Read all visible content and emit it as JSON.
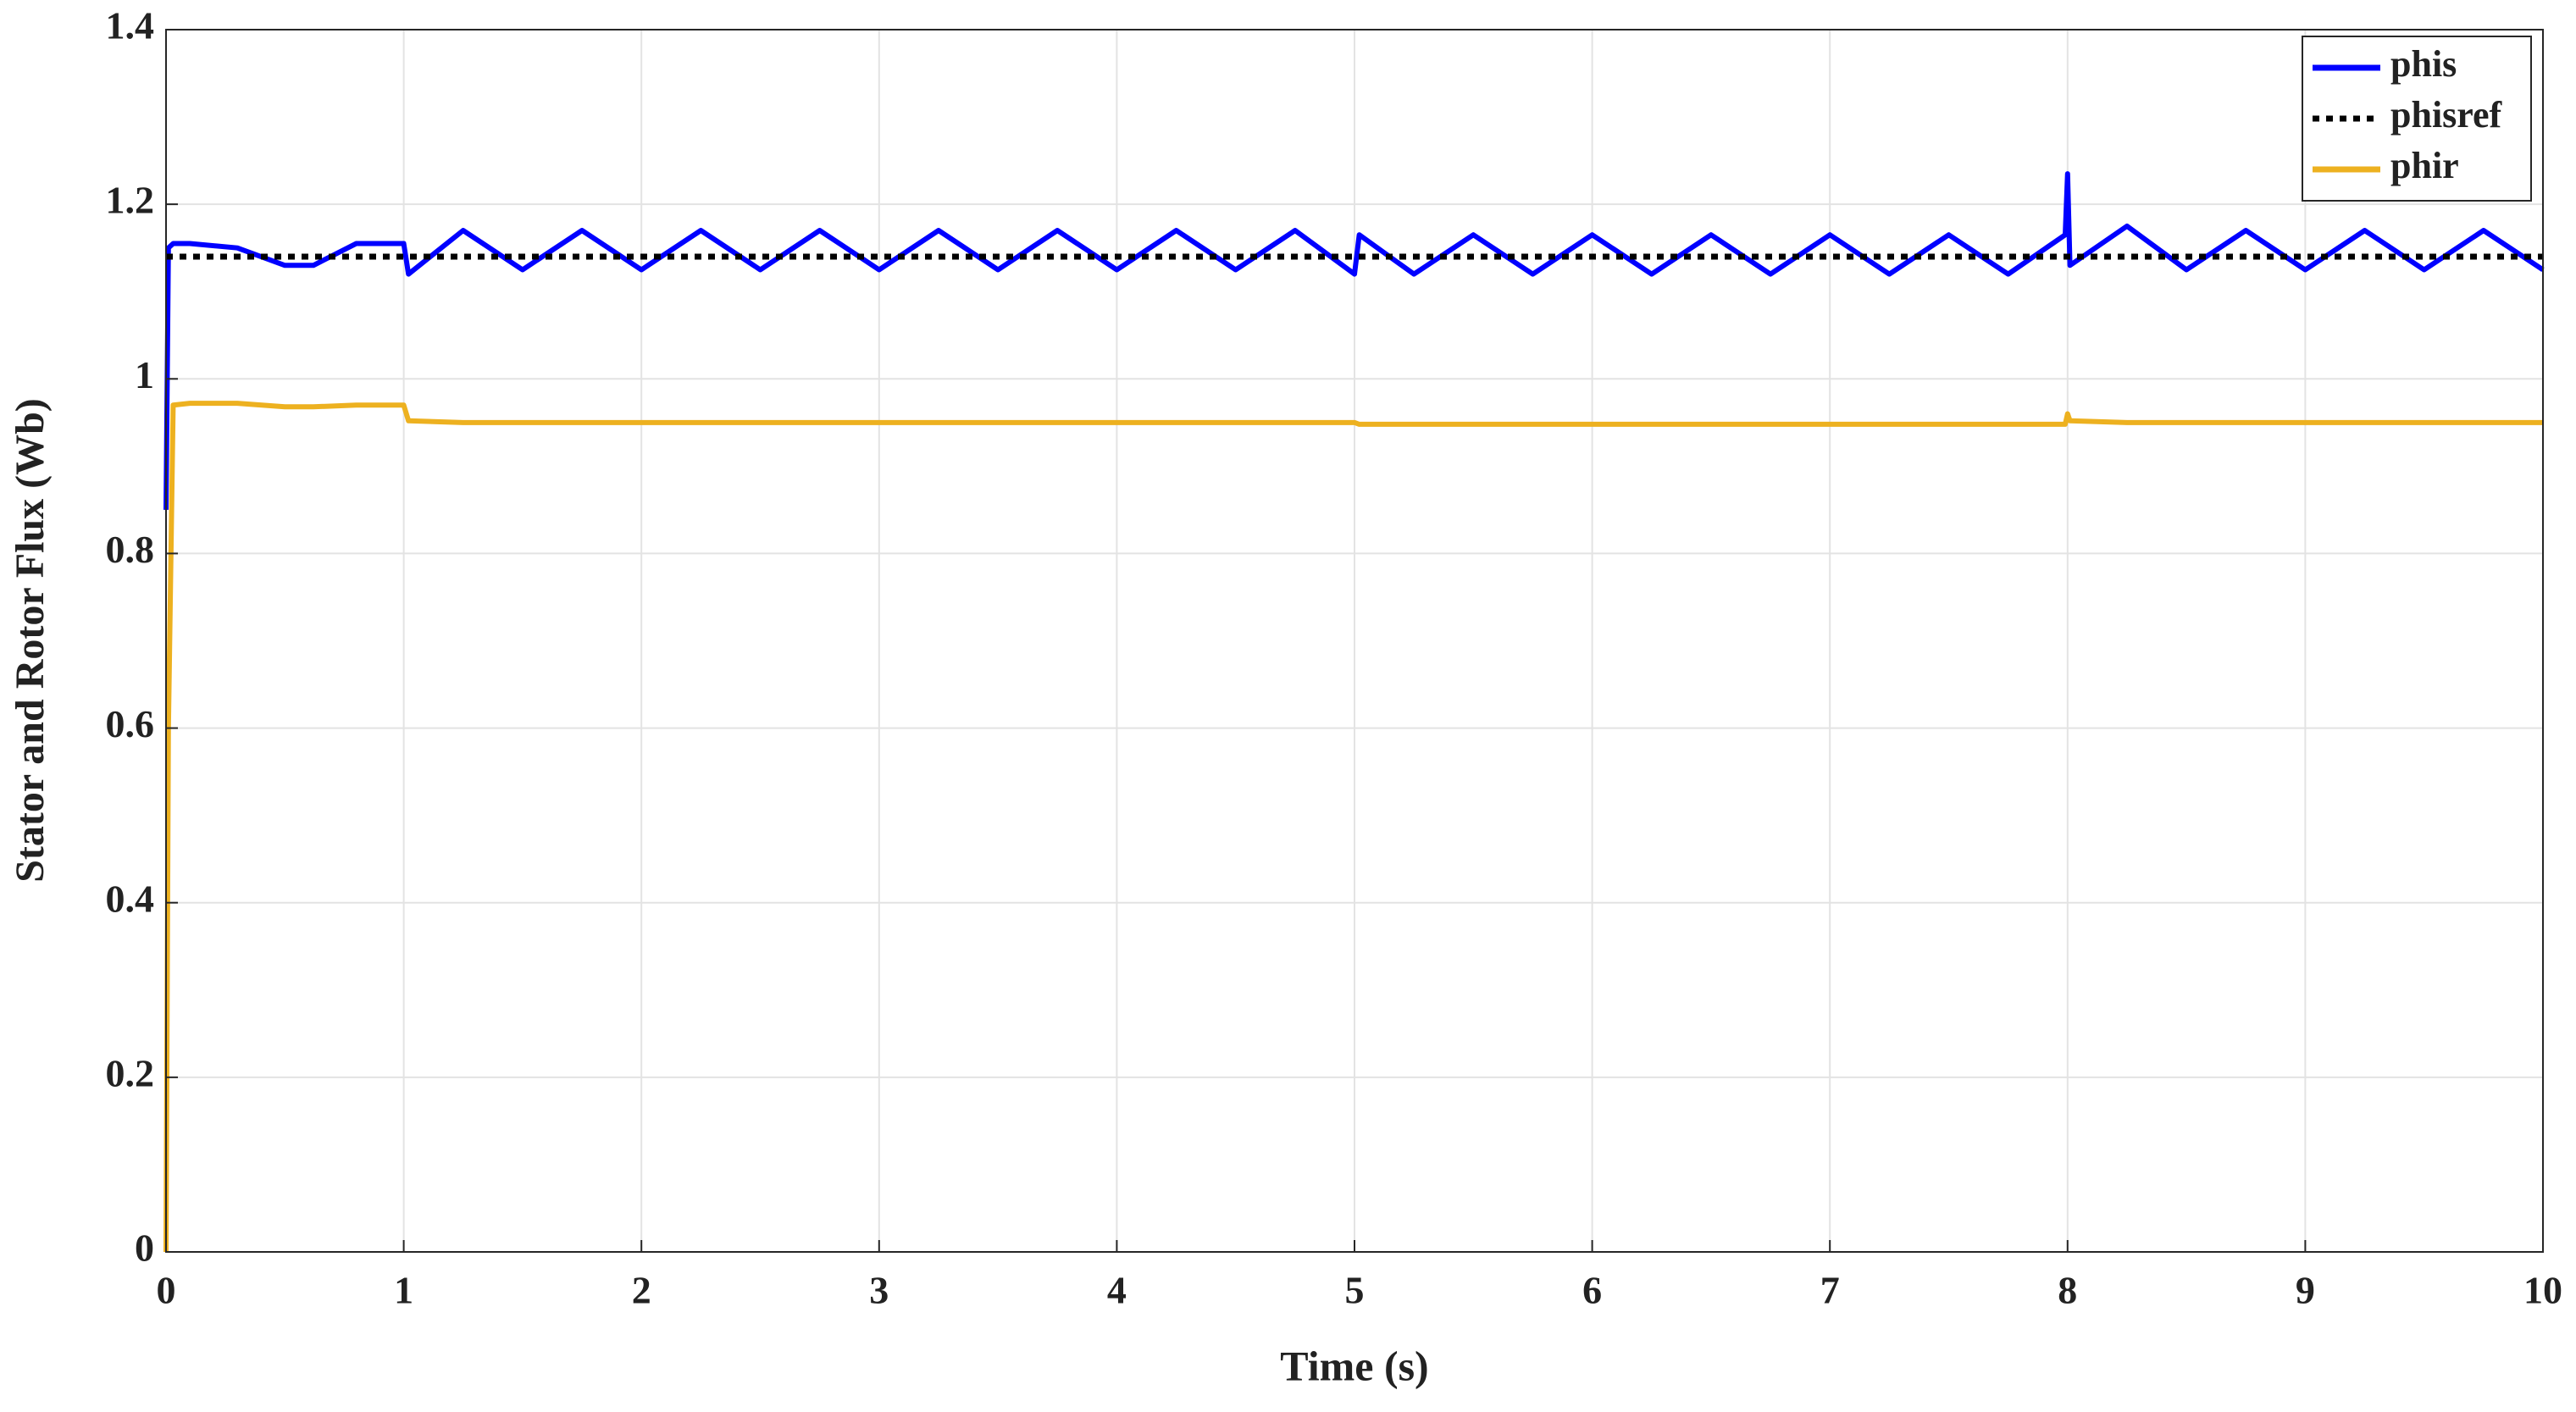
{
  "chart_data": {
    "type": "line",
    "xlabel": "Time (s)",
    "ylabel": "Stator and Rotor Flux (Wb)",
    "x": [
      0,
      0.01,
      0.03,
      0.1,
      0.3,
      0.5,
      0.62,
      0.8,
      1.0,
      1.02,
      1.25,
      1.5,
      1.75,
      2,
      2.25,
      2.5,
      2.75,
      3,
      3.25,
      3.5,
      3.75,
      4,
      4.25,
      4.5,
      4.75,
      5,
      5.02,
      5.25,
      5.5,
      5.75,
      6,
      6.25,
      6.5,
      6.75,
      7,
      7.25,
      7.5,
      7.75,
      7.99,
      8,
      8.01,
      8.25,
      8.5,
      8.75,
      9,
      9.25,
      9.5,
      9.75,
      10
    ],
    "series": [
      {
        "name": "phis",
        "color": "#0000ff",
        "style": "solid",
        "values": [
          0.85,
          1.15,
          1.155,
          1.155,
          1.15,
          1.13,
          1.13,
          1.155,
          1.155,
          1.12,
          1.17,
          1.125,
          1.17,
          1.125,
          1.17,
          1.125,
          1.17,
          1.125,
          1.17,
          1.125,
          1.17,
          1.125,
          1.17,
          1.125,
          1.17,
          1.12,
          1.165,
          1.12,
          1.165,
          1.12,
          1.165,
          1.12,
          1.165,
          1.12,
          1.165,
          1.12,
          1.165,
          1.12,
          1.165,
          1.235,
          1.13,
          1.175,
          1.125,
          1.17,
          1.125,
          1.17,
          1.125,
          1.17,
          1.125
        ]
      },
      {
        "name": "phisref",
        "color": "#000000",
        "style": "dotted",
        "values": [
          1.14,
          1.14,
          1.14,
          1.14,
          1.14,
          1.14,
          1.14,
          1.14,
          1.14,
          1.14,
          1.14,
          1.14,
          1.14,
          1.14,
          1.14,
          1.14,
          1.14,
          1.14,
          1.14,
          1.14,
          1.14,
          1.14,
          1.14,
          1.14,
          1.14,
          1.14,
          1.14,
          1.14,
          1.14,
          1.14,
          1.14,
          1.14,
          1.14,
          1.14,
          1.14,
          1.14,
          1.14,
          1.14,
          1.14,
          1.14,
          1.14,
          1.14,
          1.14,
          1.14,
          1.14,
          1.14,
          1.14,
          1.14,
          1.14
        ]
      },
      {
        "name": "phir",
        "color": "#edb120",
        "style": "solid",
        "values": [
          0,
          0.6,
          0.97,
          0.972,
          0.972,
          0.968,
          0.968,
          0.97,
          0.97,
          0.952,
          0.95,
          0.95,
          0.95,
          0.95,
          0.95,
          0.95,
          0.95,
          0.95,
          0.95,
          0.95,
          0.95,
          0.95,
          0.95,
          0.95,
          0.95,
          0.95,
          0.948,
          0.948,
          0.948,
          0.948,
          0.948,
          0.948,
          0.948,
          0.948,
          0.948,
          0.948,
          0.948,
          0.948,
          0.948,
          0.96,
          0.952,
          0.95,
          0.95,
          0.95,
          0.95,
          0.95,
          0.95,
          0.95,
          0.95
        ]
      }
    ],
    "xlim": [
      0,
      10
    ],
    "xticks": [
      0,
      1,
      2,
      3,
      4,
      5,
      6,
      7,
      8,
      9,
      10
    ],
    "ylim": [
      0,
      1.4
    ],
    "yticks": [
      0,
      0.2,
      0.4,
      0.6,
      0.8,
      1,
      1.2,
      1.4
    ],
    "grid": true,
    "legend": "northeast"
  }
}
